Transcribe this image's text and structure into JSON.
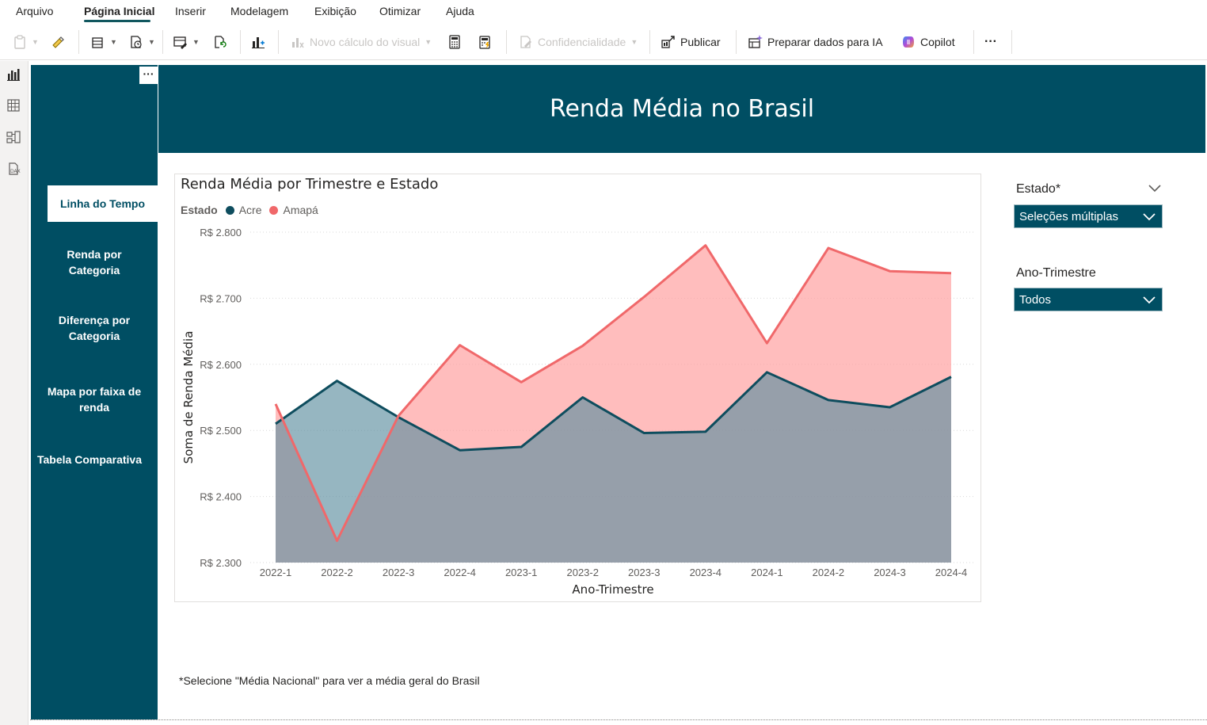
{
  "menu": {
    "items": [
      "Arquivo",
      "Página Inicial",
      "Inserir",
      "Modelagem",
      "Exibição",
      "Otimizar",
      "Ajuda"
    ],
    "active": "Página Inicial"
  },
  "toolbar": {
    "novo_calculo": "Novo cálculo do visual",
    "confidencialidade": "Confidencialidade",
    "publicar": "Publicar",
    "preparar": "Preparar dados para IA",
    "copilot": "Copilot",
    "more": "···"
  },
  "nav": {
    "more": "···",
    "items": [
      {
        "label": "Linha do Tempo",
        "active": true
      },
      {
        "label": "Renda por Categoria",
        "active": false
      },
      {
        "label": "Diferença por Categoria",
        "active": false
      },
      {
        "label": "Mapa por faixa de renda",
        "active": false
      },
      {
        "label": "Tabela Comparativa",
        "active": false
      }
    ]
  },
  "header": {
    "title": "Renda Média no Brasil"
  },
  "chart_data": {
    "type": "area",
    "title": "Renda Média por Trimestre e Estado",
    "legend_title": "Estado",
    "legend_position": "top-left",
    "xlabel": "Ano-Trimestre",
    "ylabel": "Soma de Renda Média",
    "ylim": [
      2300,
      2800
    ],
    "yticks": [
      2800,
      2700,
      2600,
      2500,
      2400,
      2300
    ],
    "ytick_labels": [
      "R$ 2.800",
      "R$ 2.700",
      "R$ 2.600",
      "R$ 2.500",
      "R$ 2.400",
      "R$ 2.300"
    ],
    "grid": true,
    "categories": [
      "2022-1",
      "2022-2",
      "2022-3",
      "2022-4",
      "2023-1",
      "2023-2",
      "2023-3",
      "2023-4",
      "2024-1",
      "2024-2",
      "2024-3",
      "2024-4"
    ],
    "series": [
      {
        "name": "Acre",
        "color": "#0e4d5e",
        "fill": "#5e8fa0",
        "values": [
          2510,
          2575,
          2520,
          2470,
          2475,
          2550,
          2496,
          2498,
          2588,
          2546,
          2535,
          2581
        ]
      },
      {
        "name": "Amapá",
        "color": "#f0686a",
        "fill": "#ff9a9a",
        "values": [
          2540,
          2333,
          2522,
          2629,
          2573,
          2628,
          2702,
          2780,
          2632,
          2776,
          2741,
          2738
        ]
      }
    ]
  },
  "slicers": {
    "estado": {
      "label": "Estado*",
      "value": "Seleções múltiplas"
    },
    "trimestre": {
      "label": "Ano-Trimestre",
      "value": "Todos"
    }
  },
  "footnote": "*Selecione \"Média Nacional\" para ver a média geral do Brasil"
}
